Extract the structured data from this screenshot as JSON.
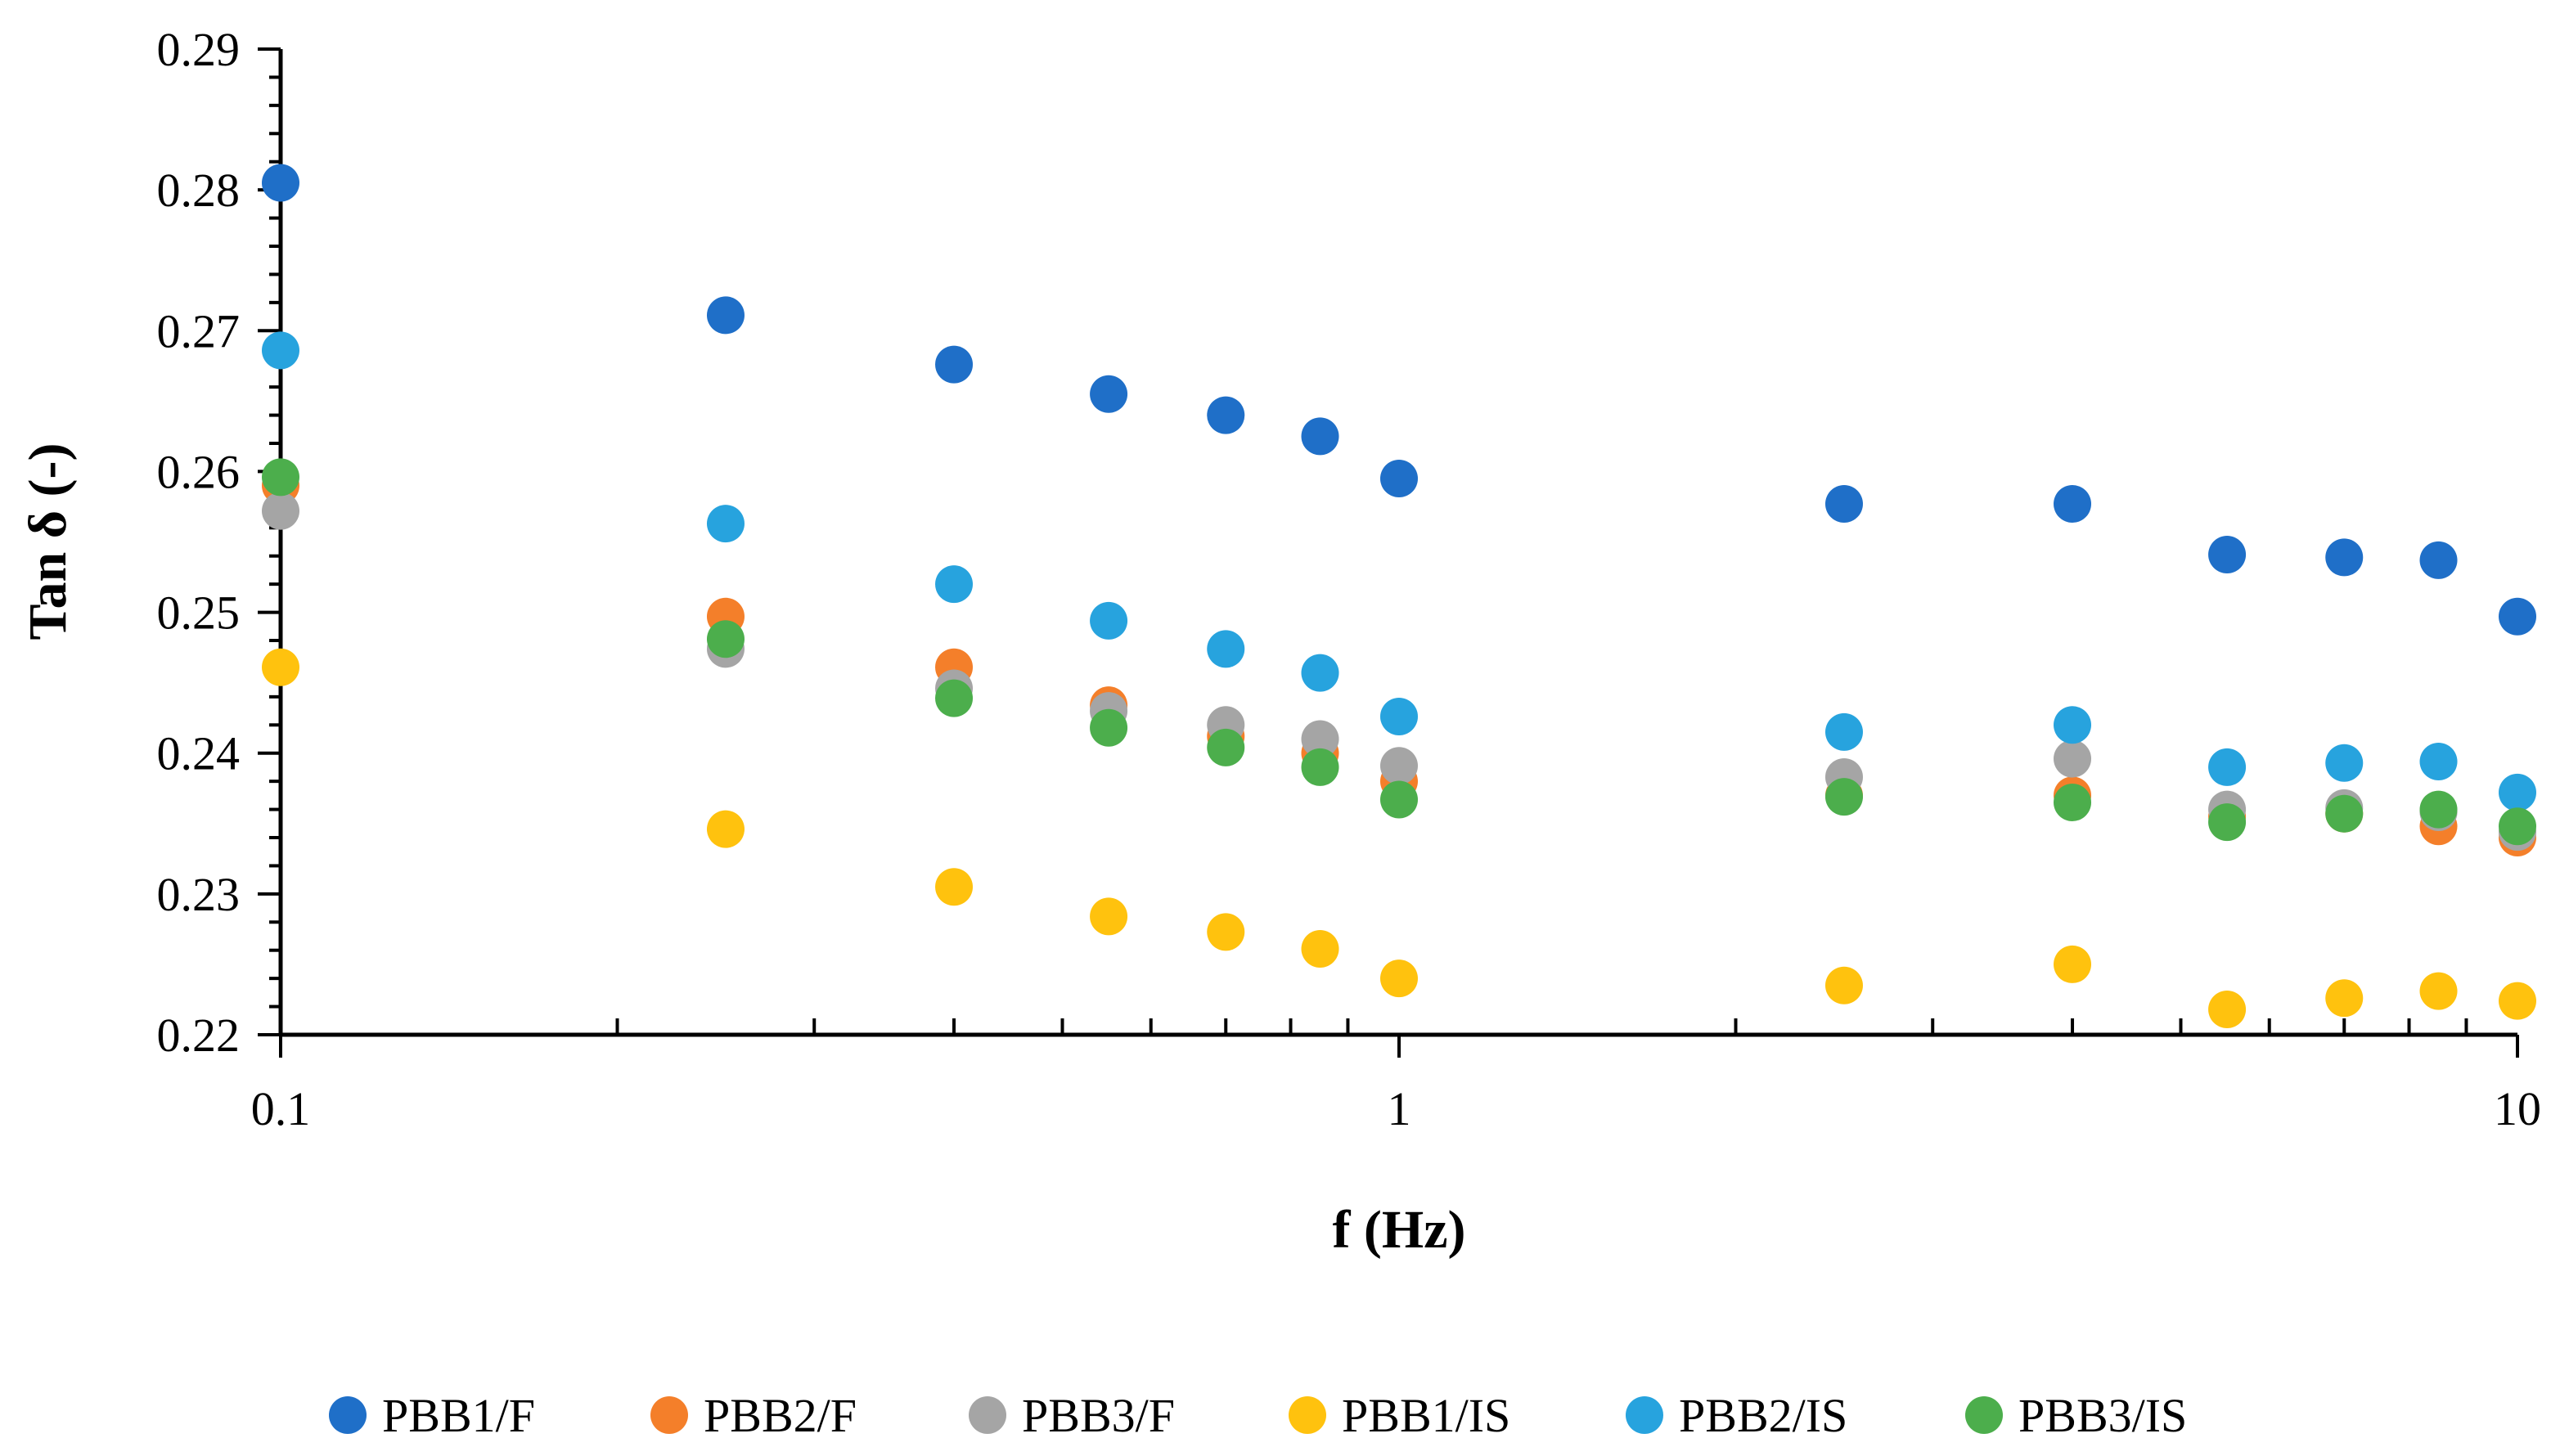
{
  "chart_data": {
    "type": "scatter",
    "xlabel": "f (Hz)",
    "ylabel": "Tan δ (-)",
    "x_scale": "log",
    "xlim": [
      0.1,
      10
    ],
    "ylim": [
      0.22,
      0.29
    ],
    "x_tick_labels": [
      "0.1",
      "1",
      "10"
    ],
    "y_tick_labels": [
      "0.22",
      "0.23",
      "0.24",
      "0.25",
      "0.26",
      "0.27",
      "0.28",
      "0.29"
    ],
    "grid": false,
    "legend_position": "bottom",
    "x": [
      0.1,
      0.25,
      0.4,
      0.55,
      0.7,
      0.85,
      1,
      2.5,
      4,
      5.5,
      7,
      8.5,
      10
    ],
    "series": [
      {
        "name": "PBB1/F",
        "color": "#1f6fc8",
        "values": [
          0.2805,
          0.2711,
          0.2676,
          0.2655,
          0.264,
          0.2625,
          0.2595,
          0.2577,
          0.2577,
          0.2541,
          0.2539,
          0.2537,
          0.2497
        ]
      },
      {
        "name": "PBB2/F",
        "color": "#f47f2a",
        "values": [
          0.259,
          0.2497,
          0.2461,
          0.2434,
          0.2412,
          0.24,
          0.238,
          0.237,
          0.237,
          0.2355,
          0.2357,
          0.2348,
          0.234
        ]
      },
      {
        "name": "PBB3/F",
        "color": "#a5a5a5",
        "values": [
          0.2572,
          0.2474,
          0.2446,
          0.243,
          0.242,
          0.241,
          0.2391,
          0.2383,
          0.2396,
          0.236,
          0.2361,
          0.2358,
          0.2344
        ]
      },
      {
        "name": "PBB1/IS",
        "color": "#ffc20e",
        "values": [
          0.2461,
          0.2346,
          0.2305,
          0.2284,
          0.2273,
          0.2261,
          0.224,
          0.2235,
          0.225,
          0.2218,
          0.2226,
          0.2231,
          0.2224
        ]
      },
      {
        "name": "PBB2/IS",
        "color": "#27a3de",
        "values": [
          0.2686,
          0.2563,
          0.252,
          0.2494,
          0.2474,
          0.2457,
          0.2426,
          0.2415,
          0.242,
          0.239,
          0.2393,
          0.2394,
          0.2372
        ]
      },
      {
        "name": "PBB3/IS",
        "color": "#4cae4c",
        "values": [
          0.2596,
          0.2481,
          0.2439,
          0.2418,
          0.2404,
          0.239,
          0.2367,
          0.2369,
          0.2365,
          0.2351,
          0.2357,
          0.236,
          0.2348
        ]
      }
    ]
  }
}
